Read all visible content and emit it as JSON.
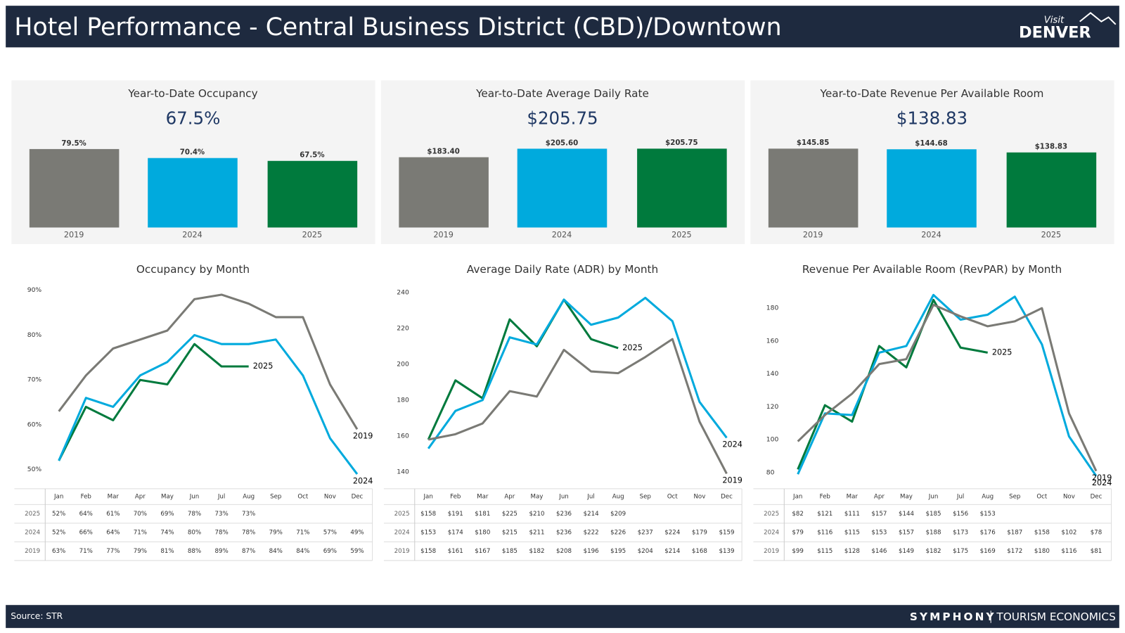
{
  "header": {
    "title": "Hotel Performance - Central Business District (CBD)/Downtown",
    "logo": {
      "top": "Visit",
      "main": "DENVER"
    }
  },
  "footer": {
    "source": "Source: STR",
    "brand": "SYMPHONY",
    "brand_sub": "TOURISM ECONOMICS"
  },
  "chart_data": [
    {
      "type": "bar",
      "title": "Year-to-Date Occupancy",
      "headline": "67.5%",
      "categories": [
        "2019",
        "2024",
        "2025"
      ],
      "values": [
        79.5,
        70.4,
        67.5
      ],
      "value_labels": [
        "79.5%",
        "70.4%",
        "67.5%"
      ],
      "colors": [
        "#7a7a75",
        "#00aadd",
        "#007a3d"
      ],
      "ylim": [
        0,
        80
      ]
    },
    {
      "type": "bar",
      "title": "Year-to-Date Average Daily Rate",
      "headline": "$205.75",
      "categories": [
        "2019",
        "2024",
        "2025"
      ],
      "values": [
        183.4,
        205.6,
        205.75
      ],
      "value_labels": [
        "$183.40",
        "$205.60",
        "$205.75"
      ],
      "colors": [
        "#7a7a75",
        "#00aadd",
        "#007a3d"
      ],
      "ylim": [
        0,
        206
      ]
    },
    {
      "type": "bar",
      "title": "Year-to-Date Revenue Per Available Room",
      "headline": "$138.83",
      "categories": [
        "2019",
        "2024",
        "2025"
      ],
      "values": [
        145.85,
        144.68,
        138.83
      ],
      "value_labels": [
        "$145.85",
        "$144.68",
        "$138.83"
      ],
      "colors": [
        "#7a7a75",
        "#00aadd",
        "#007a3d"
      ],
      "ylim": [
        0,
        146
      ]
    },
    {
      "type": "line",
      "title": "Occupancy by Month",
      "categories": [
        "Jan",
        "Feb",
        "Mar",
        "Apr",
        "May",
        "Jun",
        "Jul",
        "Aug",
        "Sep",
        "Oct",
        "Nov",
        "Dec"
      ],
      "ylim": [
        47.5,
        91.5
      ],
      "yticks": [
        {
          "value": 50,
          "label": "50%"
        },
        {
          "value": 60,
          "label": "60%"
        },
        {
          "value": 70,
          "label": "70%"
        },
        {
          "value": 80,
          "label": "80%"
        },
        {
          "value": 90,
          "label": "90%"
        }
      ],
      "series": [
        {
          "name": "2025",
          "color": "#007a3d",
          "values": [
            52,
            64,
            61,
            70,
            69,
            78,
            73,
            73,
            null,
            null,
            null,
            null
          ],
          "value_labels": [
            "52%",
            "64%",
            "61%",
            "70%",
            "69%",
            "78%",
            "73%",
            "73%",
            null,
            null,
            null,
            null
          ]
        },
        {
          "name": "2024",
          "color": "#00aadd",
          "values": [
            52,
            66,
            64,
            71,
            74,
            80,
            78,
            78,
            79,
            71,
            57,
            49
          ],
          "value_labels": [
            "52%",
            "66%",
            "64%",
            "71%",
            "74%",
            "80%",
            "78%",
            "78%",
            "79%",
            "71%",
            "57%",
            "49%"
          ]
        },
        {
          "name": "2019",
          "color": "#7a7a75",
          "values": [
            63,
            71,
            77,
            79,
            81,
            88,
            89,
            87,
            84,
            84,
            69,
            59
          ],
          "value_labels": [
            "63%",
            "71%",
            "77%",
            "79%",
            "81%",
            "88%",
            "89%",
            "87%",
            "84%",
            "84%",
            "69%",
            "59%"
          ]
        }
      ]
    },
    {
      "type": "line",
      "title": "Average Daily Rate (ADR) by Month",
      "categories": [
        "Jan",
        "Feb",
        "Mar",
        "Apr",
        "May",
        "Jun",
        "Jul",
        "Aug",
        "Sep",
        "Oct",
        "Nov",
        "Dec"
      ],
      "ylim": [
        135,
        245
      ],
      "yticks": [
        140,
        160,
        180,
        200,
        220,
        240
      ],
      "series": [
        {
          "name": "2025",
          "color": "#007a3d",
          "values": [
            158,
            191,
            181,
            225,
            210,
            236,
            214,
            209,
            null,
            null,
            null,
            null
          ],
          "value_labels": [
            "$158",
            "$191",
            "$181",
            "$225",
            "$210",
            "$236",
            "$214",
            "$209",
            null,
            null,
            null,
            null
          ]
        },
        {
          "name": "2024",
          "color": "#00aadd",
          "values": [
            153,
            174,
            180,
            215,
            211,
            236,
            222,
            226,
            237,
            224,
            179,
            159
          ],
          "value_labels": [
            "$153",
            "$174",
            "$180",
            "$215",
            "$211",
            "$236",
            "$222",
            "$226",
            "$237",
            "$224",
            "$179",
            "$159"
          ]
        },
        {
          "name": "2019",
          "color": "#7a7a75",
          "values": [
            158,
            161,
            167,
            185,
            182,
            208,
            196,
            195,
            204,
            214,
            168,
            139
          ],
          "value_labels": [
            "$158",
            "$161",
            "$167",
            "$185",
            "$182",
            "$208",
            "$196",
            "$195",
            "$204",
            "$214",
            "$168",
            "$139"
          ]
        }
      ]
    },
    {
      "type": "line",
      "title": "Revenue Per Available Room (RevPAR) by Month",
      "categories": [
        "Jan",
        "Feb",
        "Mar",
        "Apr",
        "May",
        "Jun",
        "Jul",
        "Aug",
        "Sep",
        "Oct",
        "Nov",
        "Dec"
      ],
      "ylim": [
        75,
        195
      ],
      "yticks": [
        80,
        100,
        120,
        140,
        160,
        180
      ],
      "series": [
        {
          "name": "2025",
          "color": "#007a3d",
          "values": [
            82,
            121,
            111,
            157,
            144,
            185,
            156,
            153,
            null,
            null,
            null,
            null
          ],
          "value_labels": [
            "$82",
            "$121",
            "$111",
            "$157",
            "$144",
            "$185",
            "$156",
            "$153",
            null,
            null,
            null,
            null
          ]
        },
        {
          "name": "2024",
          "color": "#00aadd",
          "values": [
            79,
            116,
            115,
            153,
            157,
            188,
            173,
            176,
            187,
            158,
            102,
            78
          ],
          "value_labels": [
            "$79",
            "$116",
            "$115",
            "$153",
            "$157",
            "$188",
            "$173",
            "$176",
            "$187",
            "$158",
            "$102",
            "$78"
          ]
        },
        {
          "name": "2019",
          "color": "#7a7a75",
          "values": [
            99,
            115,
            128,
            146,
            149,
            182,
            175,
            169,
            172,
            180,
            116,
            81
          ],
          "value_labels": [
            "$99",
            "$115",
            "$128",
            "$146",
            "$149",
            "$182",
            "$175",
            "$169",
            "$172",
            "$180",
            "$116",
            "$81"
          ]
        }
      ]
    }
  ]
}
